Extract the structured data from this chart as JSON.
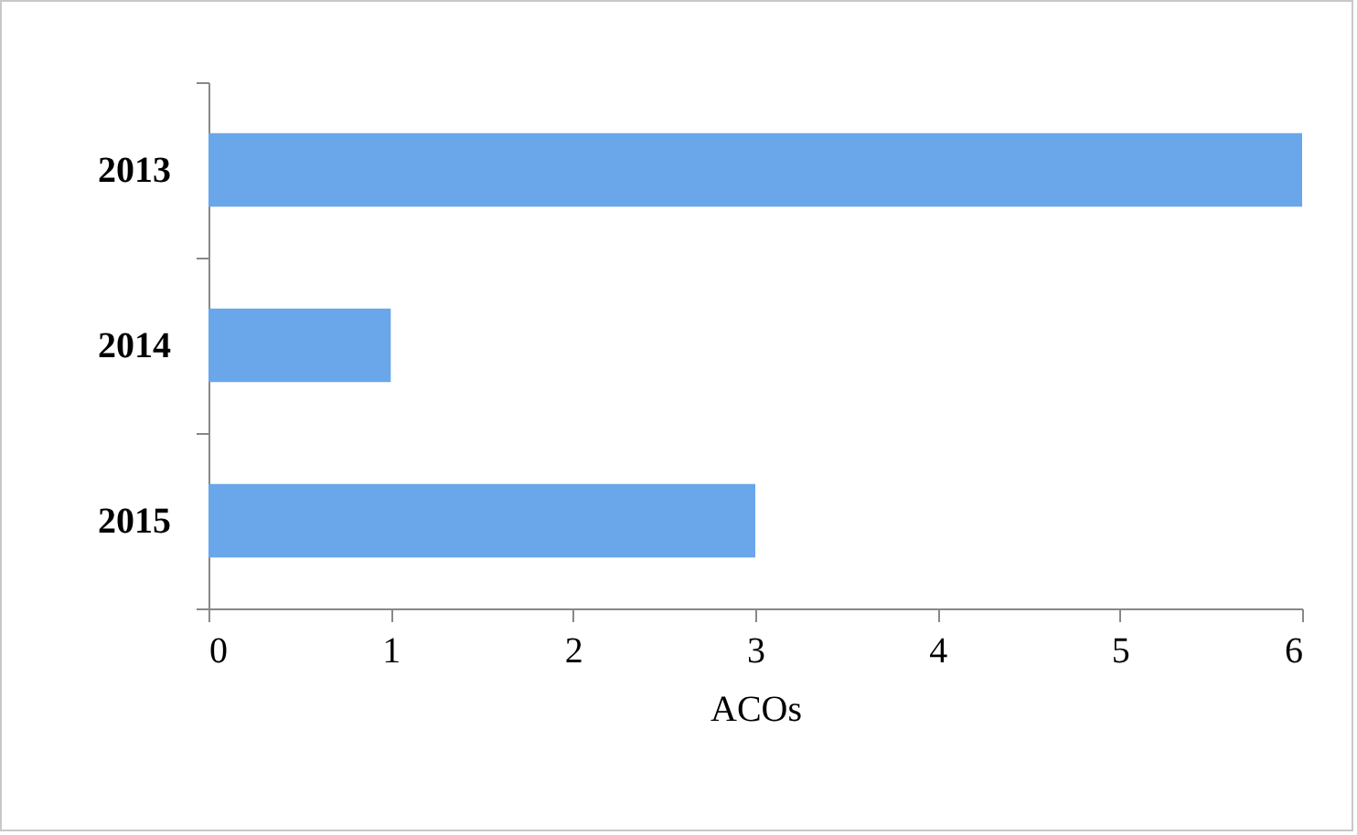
{
  "chart_data": {
    "type": "bar",
    "orientation": "horizontal",
    "categories": [
      "2013",
      "2014",
      "2015"
    ],
    "values": [
      6,
      1,
      3
    ],
    "color": "#6aa6ea",
    "xlabel": "ACOs",
    "xlim": [
      0,
      6
    ],
    "xticks": [
      0,
      1,
      2,
      3,
      4,
      5,
      6
    ],
    "grid": false
  }
}
